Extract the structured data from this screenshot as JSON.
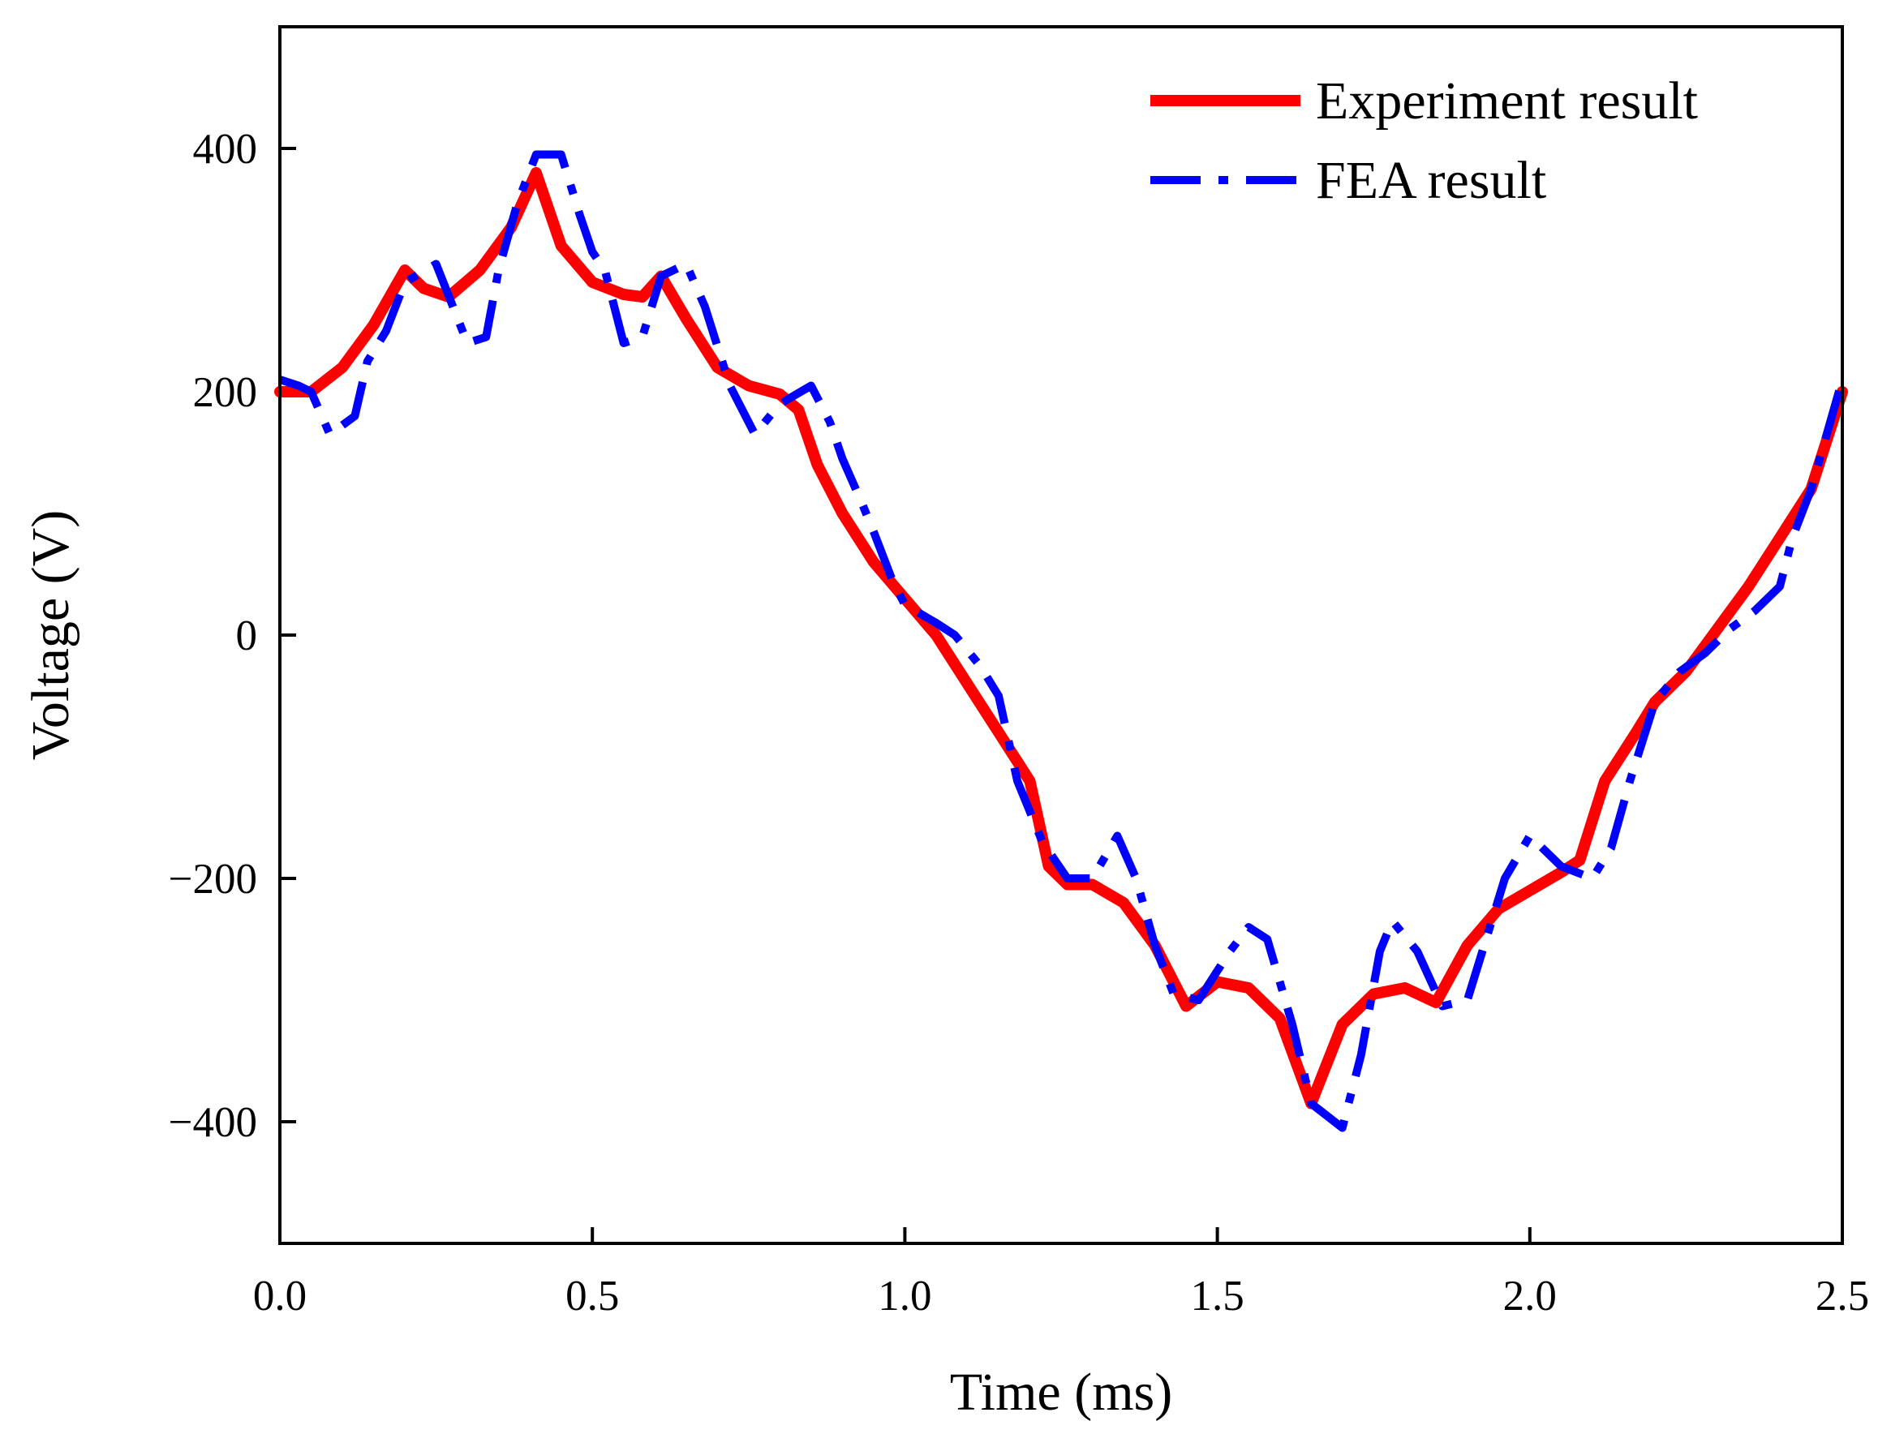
{
  "chart_data": {
    "type": "line",
    "title": "",
    "xlabel": "Time (ms)",
    "ylabel": "Voltage (V)",
    "xlim": [
      0.0,
      2.5
    ],
    "ylim": [
      -500,
      500
    ],
    "xticks": [
      0.0,
      0.5,
      1.0,
      1.5,
      2.0,
      2.5
    ],
    "xtick_labels": [
      "0.0",
      "0.5",
      "1.0",
      "1.5",
      "2.0",
      "2.5"
    ],
    "yticks": [
      -400,
      -200,
      0,
      200,
      400
    ],
    "ytick_labels": [
      "−400",
      "−200",
      "0",
      "200",
      "400"
    ],
    "grid": false,
    "legend_position": "top-right",
    "series": [
      {
        "name": "Experiment result",
        "color": "#ff0000",
        "style": "solid",
        "points": [
          [
            0.0,
            200
          ],
          [
            0.05,
            200
          ],
          [
            0.1,
            220
          ],
          [
            0.15,
            255
          ],
          [
            0.2,
            300
          ],
          [
            0.23,
            285
          ],
          [
            0.27,
            278
          ],
          [
            0.32,
            300
          ],
          [
            0.37,
            335
          ],
          [
            0.41,
            380
          ],
          [
            0.45,
            320
          ],
          [
            0.5,
            290
          ],
          [
            0.55,
            280
          ],
          [
            0.58,
            278
          ],
          [
            0.61,
            295
          ],
          [
            0.65,
            260
          ],
          [
            0.7,
            220
          ],
          [
            0.75,
            205
          ],
          [
            0.8,
            198
          ],
          [
            0.83,
            185
          ],
          [
            0.86,
            140
          ],
          [
            0.9,
            100
          ],
          [
            0.95,
            60
          ],
          [
            1.0,
            30
          ],
          [
            1.05,
            0
          ],
          [
            1.1,
            -40
          ],
          [
            1.15,
            -80
          ],
          [
            1.2,
            -120
          ],
          [
            1.23,
            -190
          ],
          [
            1.26,
            -205
          ],
          [
            1.3,
            -205
          ],
          [
            1.35,
            -220
          ],
          [
            1.4,
            -255
          ],
          [
            1.45,
            -305
          ],
          [
            1.5,
            -285
          ],
          [
            1.55,
            -290
          ],
          [
            1.6,
            -315
          ],
          [
            1.65,
            -385
          ],
          [
            1.7,
            -320
          ],
          [
            1.75,
            -295
          ],
          [
            1.8,
            -290
          ],
          [
            1.85,
            -302
          ],
          [
            1.9,
            -255
          ],
          [
            1.95,
            -225
          ],
          [
            2.0,
            -210
          ],
          [
            2.05,
            -195
          ],
          [
            2.08,
            -185
          ],
          [
            2.12,
            -120
          ],
          [
            2.17,
            -80
          ],
          [
            2.2,
            -55
          ],
          [
            2.25,
            -30
          ],
          [
            2.3,
            5
          ],
          [
            2.35,
            40
          ],
          [
            2.4,
            80
          ],
          [
            2.45,
            120
          ],
          [
            2.5,
            200
          ]
        ]
      },
      {
        "name": "FEA result",
        "color": "#0000ff",
        "style": "dash-dot",
        "points": [
          [
            0.0,
            210
          ],
          [
            0.03,
            205
          ],
          [
            0.05,
            200
          ],
          [
            0.08,
            165
          ],
          [
            0.12,
            180
          ],
          [
            0.14,
            225
          ],
          [
            0.17,
            250
          ],
          [
            0.2,
            290
          ],
          [
            0.25,
            305
          ],
          [
            0.3,
            240
          ],
          [
            0.33,
            245
          ],
          [
            0.35,
            300
          ],
          [
            0.38,
            355
          ],
          [
            0.41,
            395
          ],
          [
            0.45,
            395
          ],
          [
            0.48,
            345
          ],
          [
            0.5,
            315
          ],
          [
            0.52,
            300
          ],
          [
            0.55,
            240
          ],
          [
            0.58,
            245
          ],
          [
            0.61,
            295
          ],
          [
            0.65,
            305
          ],
          [
            0.68,
            270
          ],
          [
            0.72,
            205
          ],
          [
            0.76,
            165
          ],
          [
            0.8,
            190
          ],
          [
            0.85,
            205
          ],
          [
            0.88,
            175
          ],
          [
            0.9,
            145
          ],
          [
            0.93,
            110
          ],
          [
            0.95,
            85
          ],
          [
            0.98,
            45
          ],
          [
            1.0,
            25
          ],
          [
            1.05,
            10
          ],
          [
            1.08,
            0
          ],
          [
            1.12,
            -25
          ],
          [
            1.15,
            -50
          ],
          [
            1.18,
            -120
          ],
          [
            1.22,
            -170
          ],
          [
            1.26,
            -200
          ],
          [
            1.3,
            -200
          ],
          [
            1.34,
            -165
          ],
          [
            1.37,
            -200
          ],
          [
            1.4,
            -255
          ],
          [
            1.43,
            -295
          ],
          [
            1.47,
            -300
          ],
          [
            1.52,
            -260
          ],
          [
            1.55,
            -240
          ],
          [
            1.58,
            -250
          ],
          [
            1.62,
            -320
          ],
          [
            1.65,
            -385
          ],
          [
            1.7,
            -405
          ],
          [
            1.73,
            -345
          ],
          [
            1.76,
            -260
          ],
          [
            1.78,
            -235
          ],
          [
            1.82,
            -260
          ],
          [
            1.86,
            -305
          ],
          [
            1.9,
            -300
          ],
          [
            1.93,
            -250
          ],
          [
            1.96,
            -200
          ],
          [
            2.0,
            -165
          ],
          [
            2.05,
            -190
          ],
          [
            2.1,
            -200
          ],
          [
            2.13,
            -175
          ],
          [
            2.16,
            -120
          ],
          [
            2.2,
            -55
          ],
          [
            2.24,
            -30
          ],
          [
            2.28,
            -15
          ],
          [
            2.32,
            5
          ],
          [
            2.36,
            20
          ],
          [
            2.4,
            40
          ],
          [
            2.42,
            80
          ],
          [
            2.45,
            120
          ],
          [
            2.5,
            210
          ]
        ]
      }
    ]
  }
}
